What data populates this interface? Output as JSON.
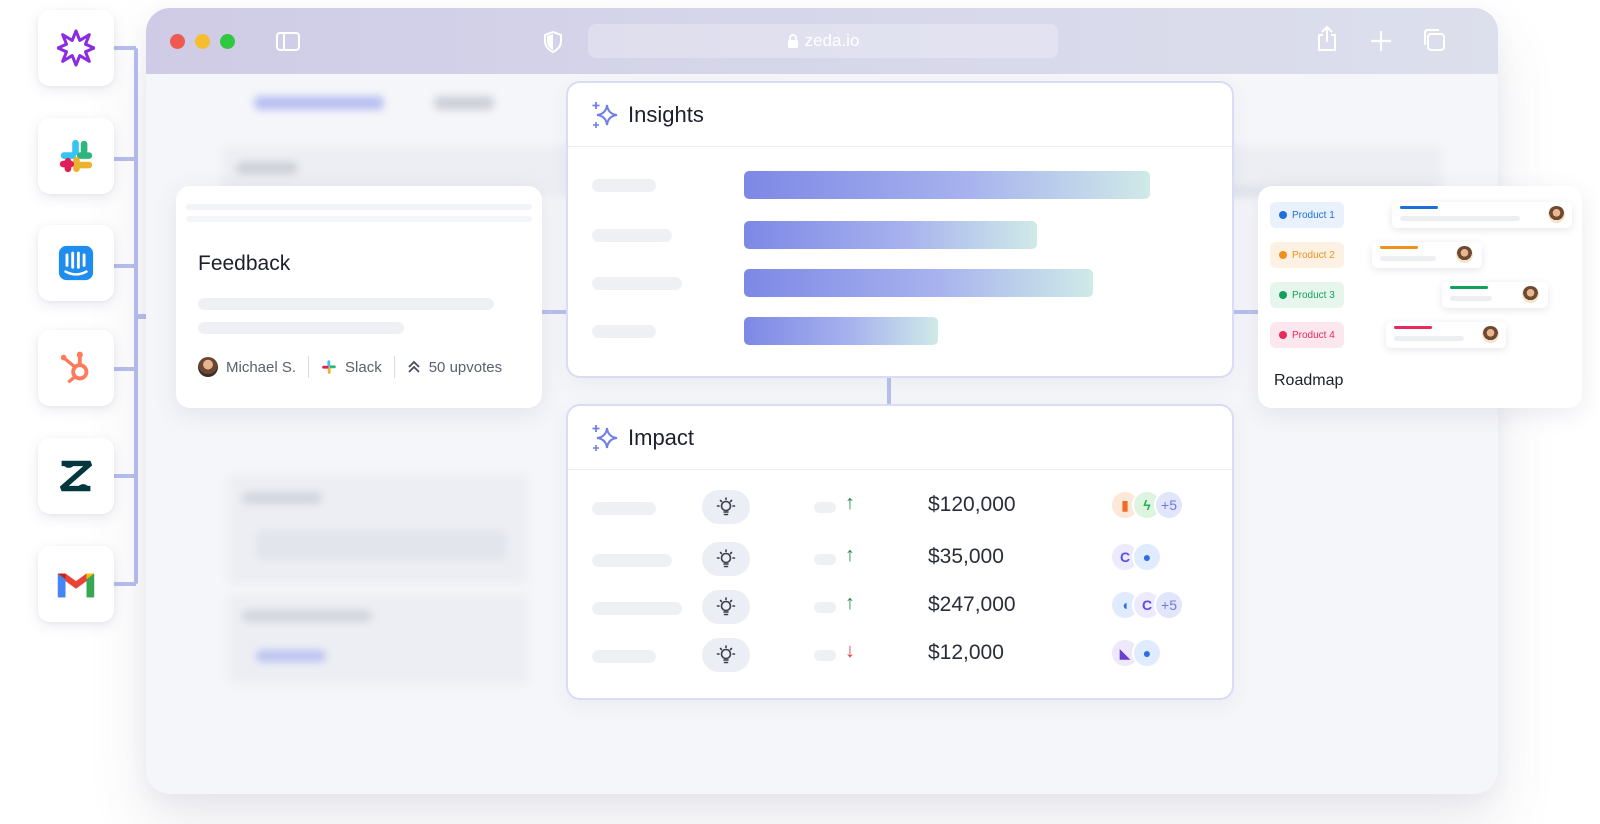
{
  "browser": {
    "url": "zeda.io",
    "titlebar_colors": [
      "#cfcbe6",
      "#dcdfec"
    ]
  },
  "integrations": [
    {
      "name": "zeda-logo",
      "color": "#8b2be2"
    },
    {
      "name": "slack-logo",
      "color": "#e01e5a"
    },
    {
      "name": "intercom-logo",
      "color": "#1f8ded"
    },
    {
      "name": "hubspot-logo",
      "color": "#ff7a59"
    },
    {
      "name": "zendesk-logo",
      "color": "#03363d"
    },
    {
      "name": "gmail-logo",
      "color": "#ea4335"
    }
  ],
  "feedback": {
    "title": "Feedback",
    "author": "Michael S.",
    "source": "Slack",
    "upvotes": "50 upvotes"
  },
  "insights": {
    "title": "Insights",
    "bars": [
      {
        "value": 0.86
      },
      {
        "value": 0.62
      },
      {
        "value": 0.74
      },
      {
        "value": 0.41
      }
    ]
  },
  "impact": {
    "title": "Impact",
    "rows": [
      {
        "trend": "up",
        "amount": "$120,000",
        "extra": "+5"
      },
      {
        "trend": "up",
        "amount": "$35,000",
        "extra": ""
      },
      {
        "trend": "up",
        "amount": "$247,000",
        "extra": "+5"
      },
      {
        "trend": "down",
        "amount": "$12,000",
        "extra": ""
      }
    ],
    "colors": {
      "up": "#1f8a4c",
      "down": "#e0394a"
    }
  },
  "roadmap": {
    "title": "Roadmap",
    "products": [
      {
        "label": "Product 1",
        "color": "#1e6fd9",
        "bg": "#e8f1fc"
      },
      {
        "label": "Product 2",
        "color": "#f0901c",
        "bg": "#fdf1e3"
      },
      {
        "label": "Product 3",
        "color": "#14a05a",
        "bg": "#e6f6ed"
      },
      {
        "label": "Product 4",
        "color": "#e8295c",
        "bg": "#fde7ee"
      }
    ]
  },
  "accent": "#6f7fe6"
}
